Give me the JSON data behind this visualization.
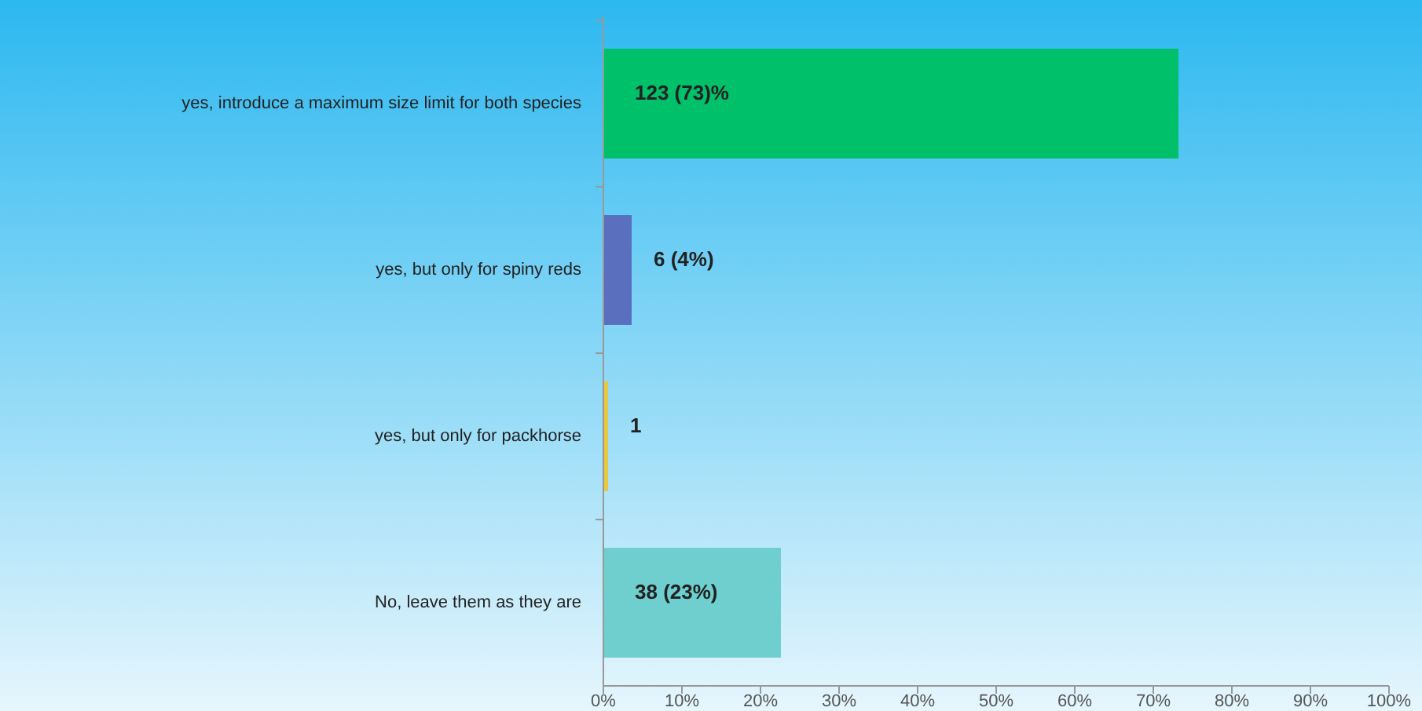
{
  "chart_data": {
    "type": "bar",
    "orientation": "horizontal",
    "categories": [
      "yes, introduce a maximum size limit for both species",
      "yes, but only for spiny reds",
      "yes, but only for packhorse",
      "No, leave them as they are"
    ],
    "values": [
      73.2,
      3.6,
      0.6,
      22.6
    ],
    "colors": [
      "#00c06a",
      "#5b6fbf",
      "#e8c840",
      "#6fcfcf"
    ],
    "value_labels": [
      "123 (73)%",
      "6 (4%)",
      "1",
      "38 (23%)"
    ],
    "xlim": [
      0,
      100
    ],
    "xticks": [
      {
        "value": 0,
        "label": "0%"
      },
      {
        "value": 10,
        "label": "10%"
      },
      {
        "value": 20,
        "label": "20%"
      },
      {
        "value": 30,
        "label": "30%"
      },
      {
        "value": 40,
        "label": "40%"
      },
      {
        "value": 50,
        "label": "50%"
      },
      {
        "value": 60,
        "label": "60%"
      },
      {
        "value": 70,
        "label": "70%"
      },
      {
        "value": 80,
        "label": "80%"
      },
      {
        "value": 90,
        "label": "90%"
      },
      {
        "value": 100,
        "label": "100%"
      }
    ],
    "grid": false
  }
}
